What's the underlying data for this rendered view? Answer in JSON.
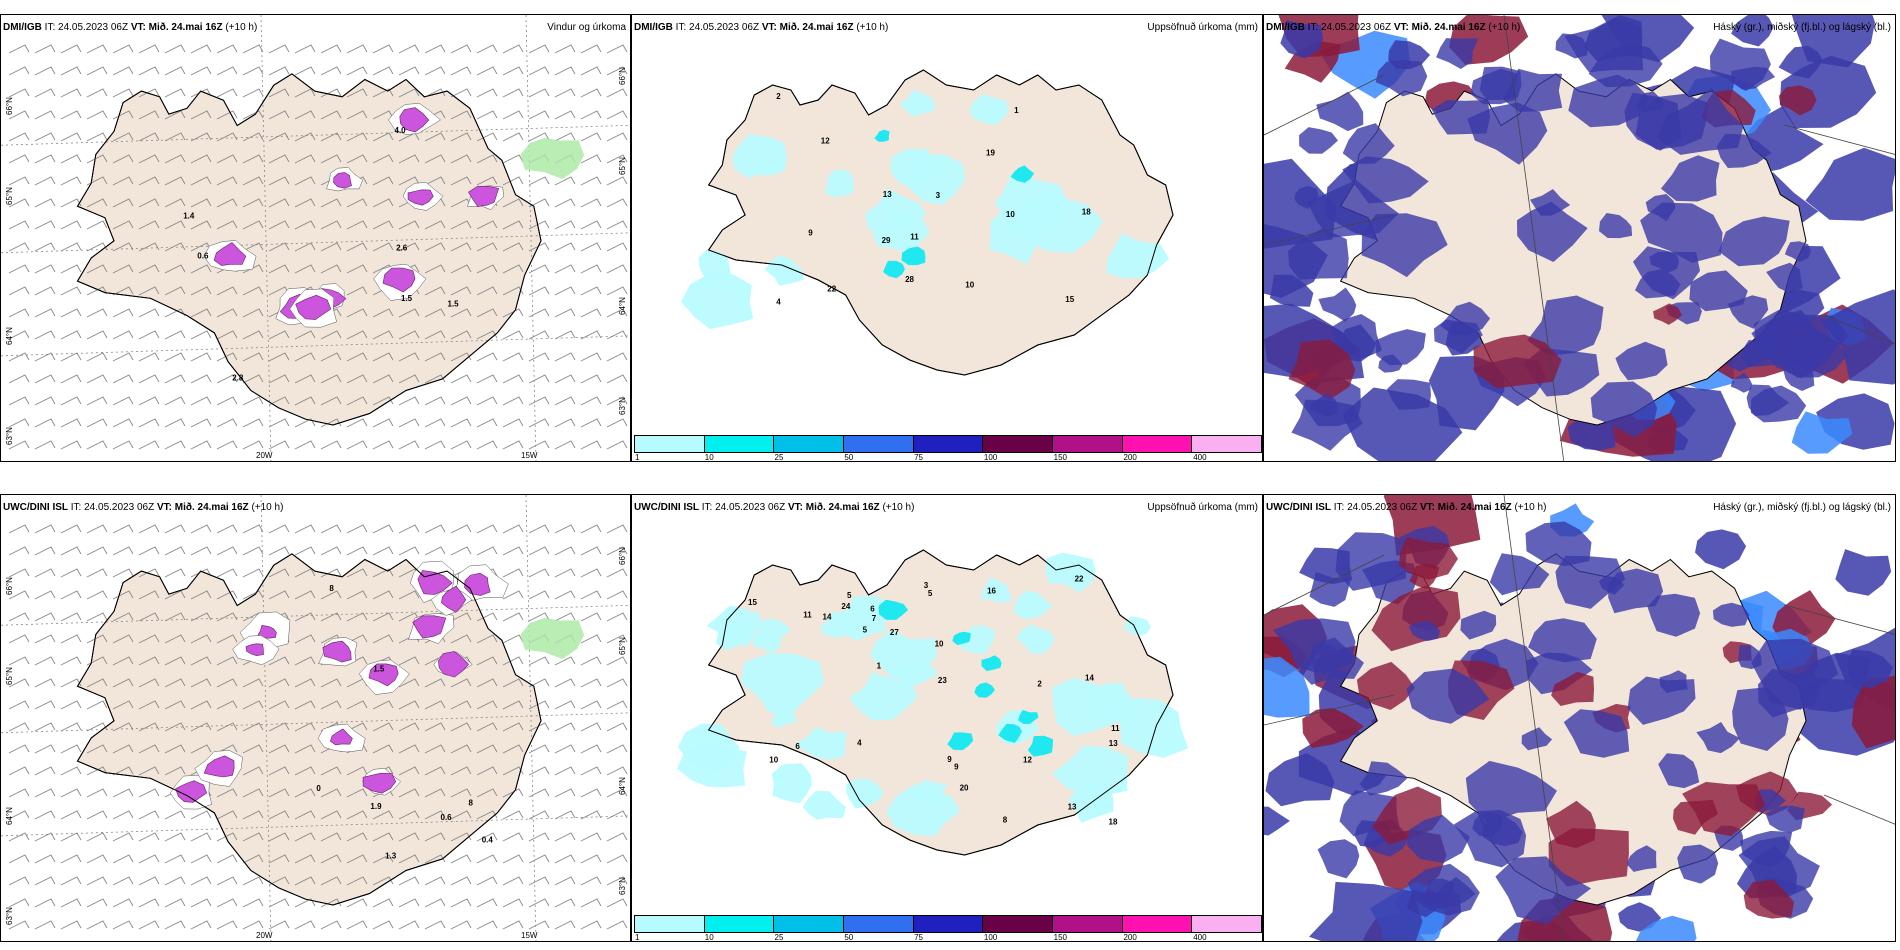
{
  "colors": {
    "land": "#f2e6da",
    "precip_light": "#b8fbff",
    "precip_mid": "#20e8f0",
    "wind_barb": "#888888",
    "magenta": "#cc55dd",
    "high_cloud": "#8b1a3a",
    "mid_cloud": "#3a3aa8",
    "low_cloud": "#3a8aff"
  },
  "colorbar": {
    "ticks": [
      "1",
      "10",
      "25",
      "50",
      "75",
      "100",
      "150",
      "200",
      "400"
    ],
    "colors": [
      "#b8fbff",
      "#00f0f0",
      "#00c0e8",
      "#3070f0",
      "#2020c0",
      "#6a0046",
      "#b01088",
      "#ff10b0",
      "#f8b0f0"
    ]
  },
  "rows": [
    {
      "panels": [
        {
          "model": "DMI/IGB",
          "it": "IT: 24.05.2023 06Z",
          "vt_label": "VT:",
          "vt": "Mið. 24.mai 16Z",
          "lead": "(+10 h)",
          "product": "Vindur og úrkoma",
          "lat_labels": [
            "66°N",
            "65°N",
            "64°N",
            "63°N"
          ],
          "lon_labels": [
            "20W",
            "15W"
          ],
          "values": [
            "0.6",
            "2.8",
            "4.0",
            "1.5",
            "2.6",
            "1.5",
            "1.4"
          ]
        },
        {
          "model": "DMI/IGB",
          "it": "IT: 24.05.2023 06Z",
          "vt_label": "VT:",
          "vt": "Mið. 24.mai 16Z",
          "lead": "(+10 h)",
          "product": "Uppsöfnuð úrkoma (mm)",
          "values": [
            "3",
            "18",
            "29",
            "10",
            "13",
            "15",
            "12",
            "9",
            "2",
            "1",
            "19",
            "11",
            "28",
            "4",
            "22",
            "10"
          ]
        },
        {
          "model": "DMI/IGB",
          "it": "IT: 24.05.2023 06Z",
          "vt_label": "VT:",
          "vt": "Mið. 24.mai 16Z",
          "lead": "(+10 h)",
          "product": "Háský (gr.), miðský (fj.bl.) og lágský (bl.)"
        }
      ]
    },
    {
      "panels": [
        {
          "model": "UWC/DINI ISL",
          "it": "IT: 24.05.2023 06Z",
          "vt_label": "VT:",
          "vt": "Mið. 24.mai 16Z",
          "lead": "(+10 h)",
          "product": "",
          "lat_labels": [
            "66°N",
            "65°N",
            "64°N",
            "63°N"
          ],
          "lon_labels": [
            "20W",
            "15W"
          ],
          "values": [
            "0.6",
            "8",
            "0",
            "8",
            "1.9",
            "1.5",
            "1.3",
            "0.4"
          ]
        },
        {
          "model": "UWC/DINI ISL",
          "it": "IT: 24.05.2023 06Z",
          "vt_label": "VT:",
          "vt": "Mið. 24.mai 16Z",
          "lead": "(+10 h)",
          "product": "Uppsöfnuð úrkoma (mm)",
          "values": [
            "6",
            "10",
            "11",
            "5",
            "4",
            "2",
            "12",
            "22",
            "24",
            "13",
            "9",
            "11",
            "18",
            "16",
            "14",
            "27",
            "23",
            "7",
            "3",
            "5",
            "8",
            "9",
            "14",
            "20",
            "13",
            "10",
            "6",
            "15",
            "1",
            "5"
          ]
        },
        {
          "model": "UWC/DINI ISL",
          "it": "IT: 24.05.2023 06Z",
          "vt_label": "VT:",
          "vt": "Mið. 24.mai 16Z",
          "lead": "(+10 h)",
          "product": "Háský (gr.), miðský (fj.bl.) og lágský (bl.)"
        }
      ]
    }
  ]
}
